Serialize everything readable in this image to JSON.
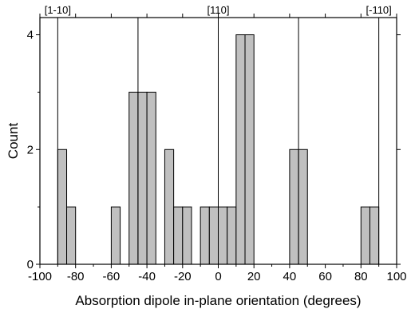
{
  "chart_data": {
    "type": "bar",
    "xlabel": "Absorption dipole in-plane orientation (degrees)",
    "ylabel": "Count",
    "xlim": [
      -100,
      100
    ],
    "ylim": [
      0,
      4.3
    ],
    "xticks": [
      "-100",
      "-80",
      "-60",
      "-40",
      "-20",
      "0",
      "20",
      "40",
      "60",
      "80",
      "100"
    ],
    "yticks": [
      "0",
      "2",
      "4"
    ],
    "bin_width": 5,
    "bins": [
      {
        "start": -90,
        "end": -85,
        "count": 2
      },
      {
        "start": -85,
        "end": -80,
        "count": 1
      },
      {
        "start": -60,
        "end": -55,
        "count": 1
      },
      {
        "start": -50,
        "end": -45,
        "count": 3
      },
      {
        "start": -45,
        "end": -40,
        "count": 3
      },
      {
        "start": -40,
        "end": -35,
        "count": 3
      },
      {
        "start": -30,
        "end": -25,
        "count": 2
      },
      {
        "start": -25,
        "end": -20,
        "count": 1
      },
      {
        "start": -20,
        "end": -15,
        "count": 1
      },
      {
        "start": -10,
        "end": -5,
        "count": 1
      },
      {
        "start": -5,
        "end": 0,
        "count": 1
      },
      {
        "start": 0,
        "end": 5,
        "count": 1
      },
      {
        "start": 5,
        "end": 10,
        "count": 1
      },
      {
        "start": 10,
        "end": 15,
        "count": 4
      },
      {
        "start": 15,
        "end": 20,
        "count": 4
      },
      {
        "start": 40,
        "end": 45,
        "count": 2
      },
      {
        "start": 45,
        "end": 50,
        "count": 2
      },
      {
        "start": 80,
        "end": 85,
        "count": 1
      },
      {
        "start": 85,
        "end": 90,
        "count": 1
      }
    ],
    "reference_lines": [
      {
        "x": -90,
        "label": "[1-10]"
      },
      {
        "x": -45,
        "label": ""
      },
      {
        "x": 0,
        "label": "[110]"
      },
      {
        "x": 45,
        "label": ""
      },
      {
        "x": 90,
        "label": "[-110]"
      }
    ],
    "bar_color": "#c0c0c0",
    "grid": false
  }
}
